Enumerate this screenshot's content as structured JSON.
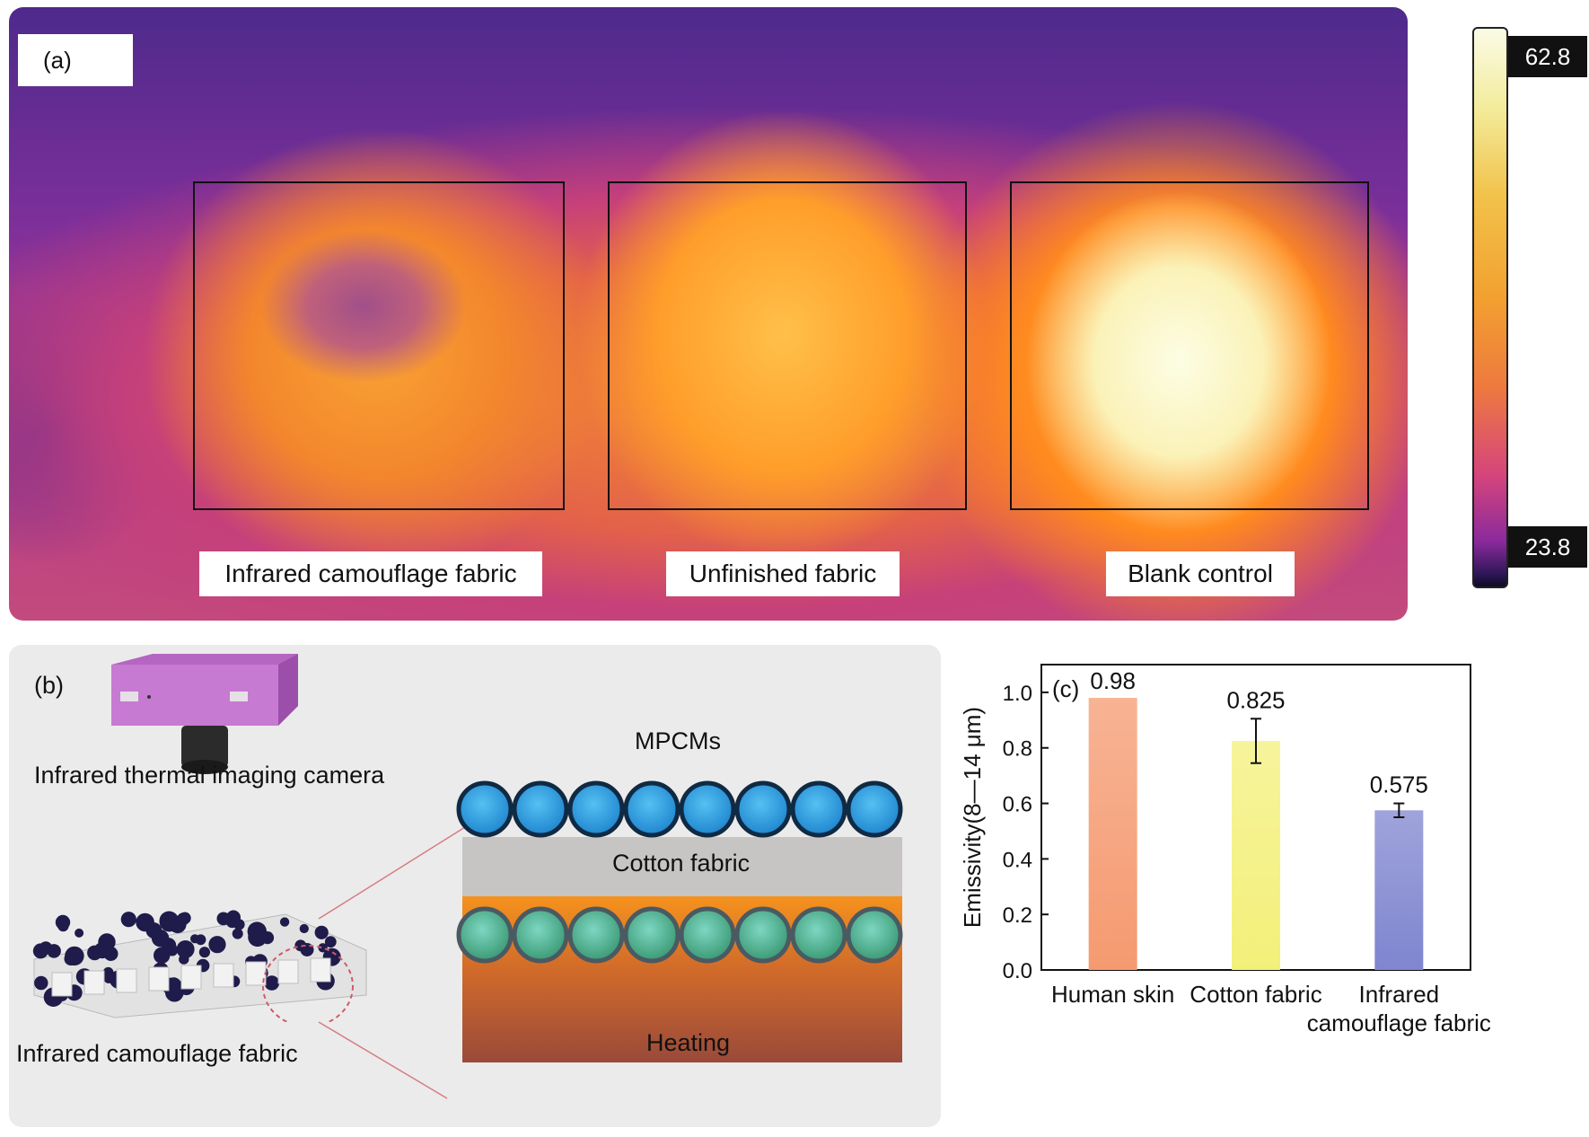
{
  "panel_a": {
    "tag": "(a)",
    "labels": [
      "Infrared camouflage fabric",
      "Unfinished fabric",
      "Blank control"
    ],
    "colorbar": {
      "max": "62.8",
      "min": "23.8"
    }
  },
  "panel_b": {
    "tag": "(b)",
    "camera_label": "Infrared thermal imaging camera",
    "fabric_label": "Infrared camouflage fabric",
    "layer_mpcms": "MPCMs",
    "layer_cotton": "Cotton fabric",
    "layer_heating": "Heating",
    "colors": {
      "mpcm": "#33a6e6",
      "heating_top": "#f28a1e",
      "heating_bottom": "#a14a36",
      "cotton": "#c6c4c4",
      "camera": "#bf6fc9"
    }
  },
  "chart_data": {
    "type": "bar",
    "tag": "(c)",
    "categories": [
      "Human skin",
      "Cotton fabric",
      "Infrared camouflage fabric"
    ],
    "category_lines": [
      [
        "Human skin"
      ],
      [
        "Cotton fabric"
      ],
      [
        "Infrared",
        "camouflage fabric"
      ]
    ],
    "values": [
      0.98,
      0.825,
      0.575
    ],
    "value_labels": [
      "0.98",
      "0.825",
      "0.575"
    ],
    "error": [
      0,
      0.08,
      0.025
    ],
    "colors": [
      "#f59a70",
      "#f3f07a",
      "#7f85cf"
    ],
    "ylabel": "Emissivity(8—14 μm)",
    "xlabel": "",
    "ylim": [
      0,
      1.1
    ],
    "yticks": [
      "0.0",
      "0.2",
      "0.4",
      "0.6",
      "0.8",
      "1.0"
    ],
    "grid": false
  }
}
